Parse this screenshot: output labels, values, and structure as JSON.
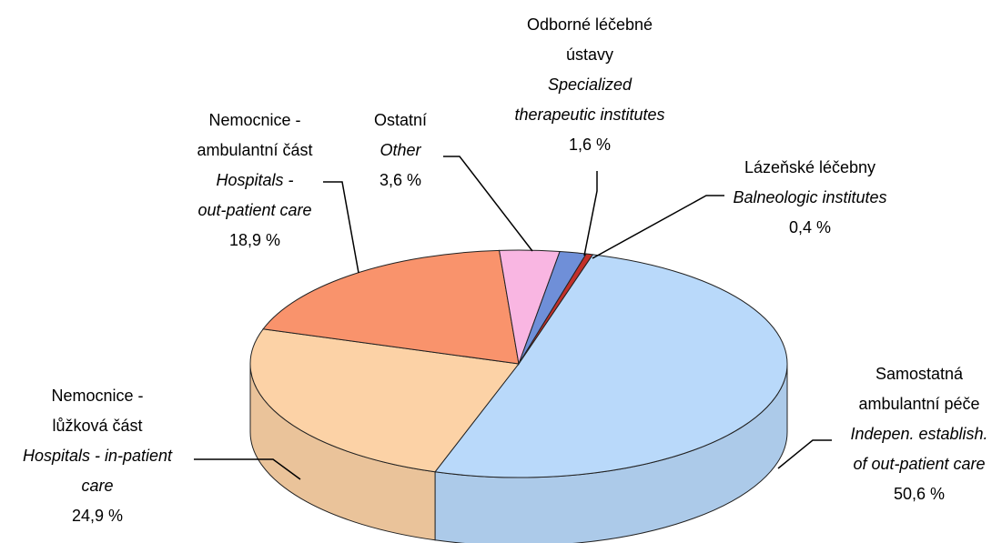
{
  "chart_data": {
    "type": "pie",
    "categories": [
      [
        "Samostatná",
        "ambulantní péče"
      ],
      [
        "Nemocnice -",
        "lůžková část"
      ],
      [
        "Nemocnice -",
        "ambulantní část"
      ],
      [
        "Ostatní"
      ],
      [
        "Odborné léčebné",
        "ústavy"
      ],
      [
        "Lázeňské léčebny"
      ]
    ],
    "categories_en": [
      [
        "Indepen. establish.",
        "of out-patient care"
      ],
      [
        "Hospitals - in-patient",
        "care"
      ],
      [
        "Hospitals -",
        "out-patient care"
      ],
      [
        "Other"
      ],
      [
        "Specialized",
        "therapeutic institutes"
      ],
      [
        "Balneologic institutes"
      ]
    ],
    "values": [
      50.6,
      24.9,
      18.9,
      3.6,
      1.6,
      0.4
    ],
    "value_labels": [
      "50,6 %",
      "24,9 %",
      "18,9 %",
      "3,6 %",
      "1,6 %",
      "0,4 %"
    ],
    "colors": [
      "#b9d9fa",
      "#fcd2a6",
      "#f9936c",
      "#f9b6e2",
      "#6f8fd8",
      "#c3302a"
    ]
  }
}
